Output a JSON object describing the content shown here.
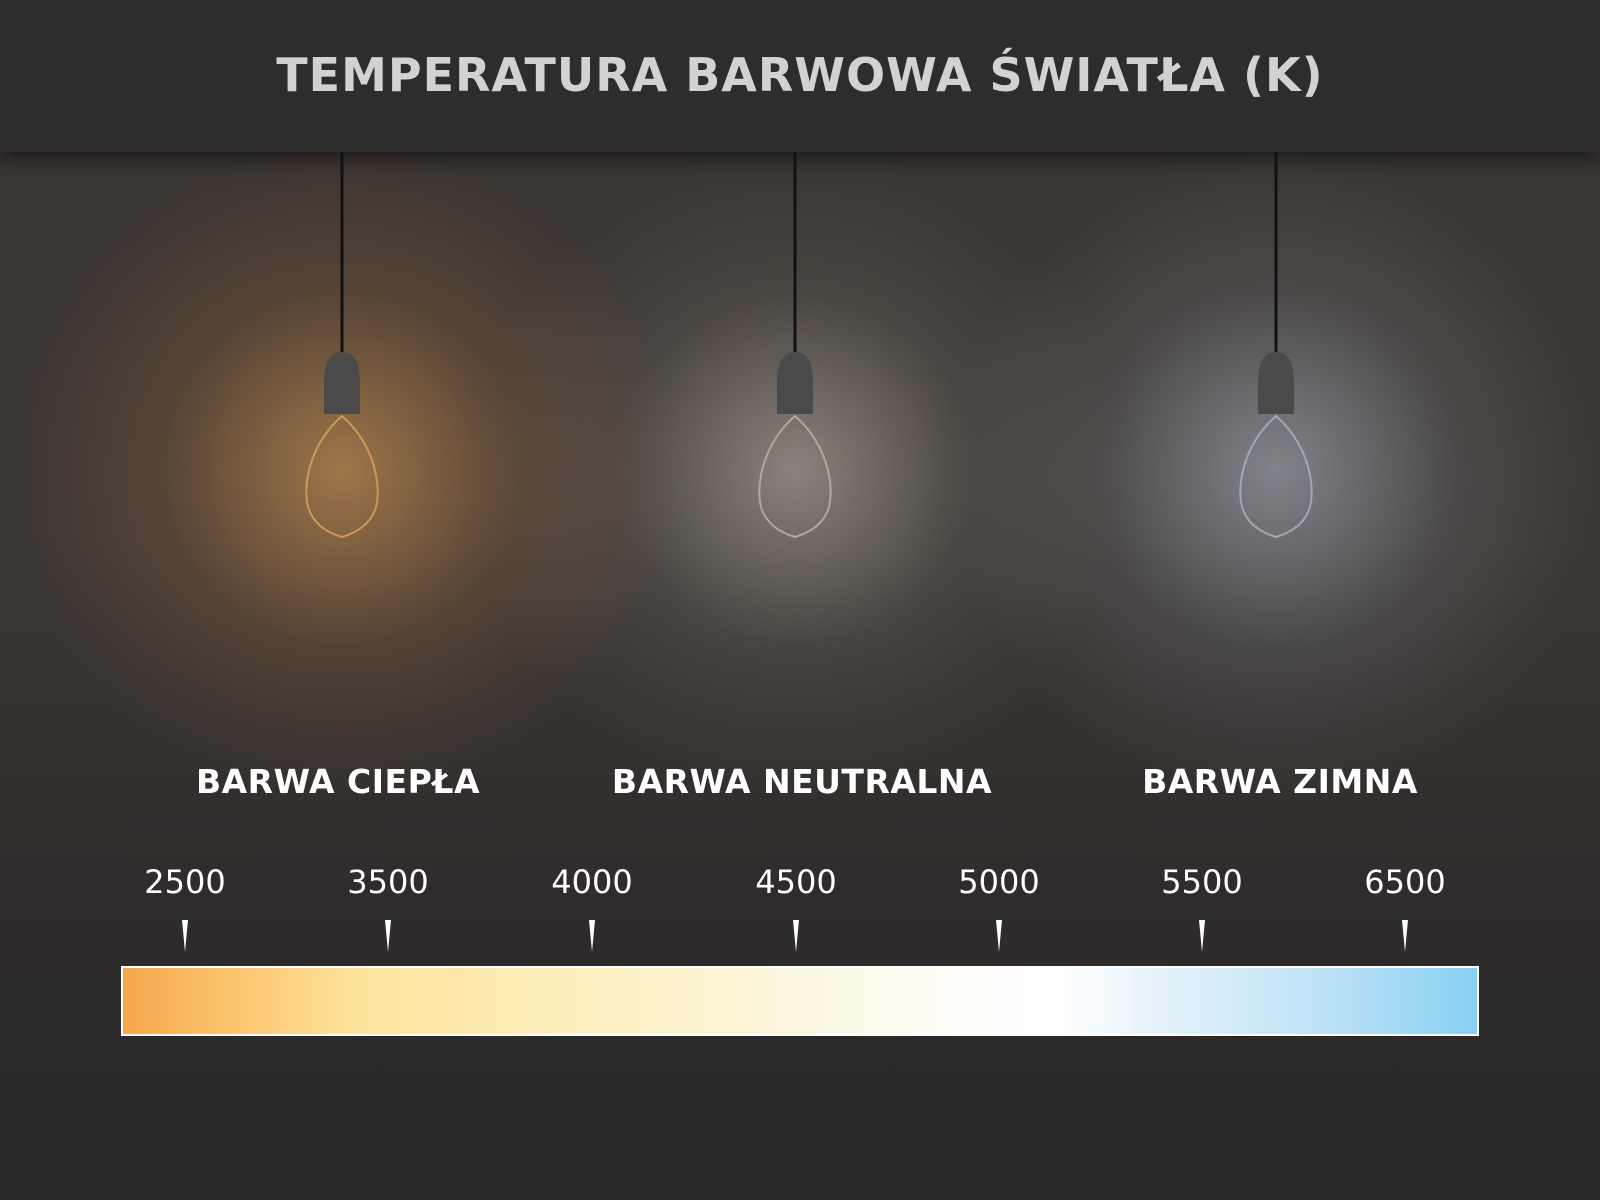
{
  "title": "TEMPERATURA BARWOWA ŚWIATŁA (K)",
  "zones": [
    {
      "label": "BARWA CIEPŁA",
      "glow": "#f5b060"
    },
    {
      "label": "BARWA NEUTRALNA",
      "glow": "#f4eee2"
    },
    {
      "label": "BARWA ZIMNA",
      "glow": "#dfe8f8"
    }
  ],
  "scale": {
    "ticks": [
      "2500",
      "3500",
      "4000",
      "4500",
      "5000",
      "5500",
      "6500"
    ],
    "gradient_colors": [
      "#f5a64b",
      "#fde29a",
      "#faf6de",
      "#ffffff",
      "#88d0f4"
    ]
  }
}
